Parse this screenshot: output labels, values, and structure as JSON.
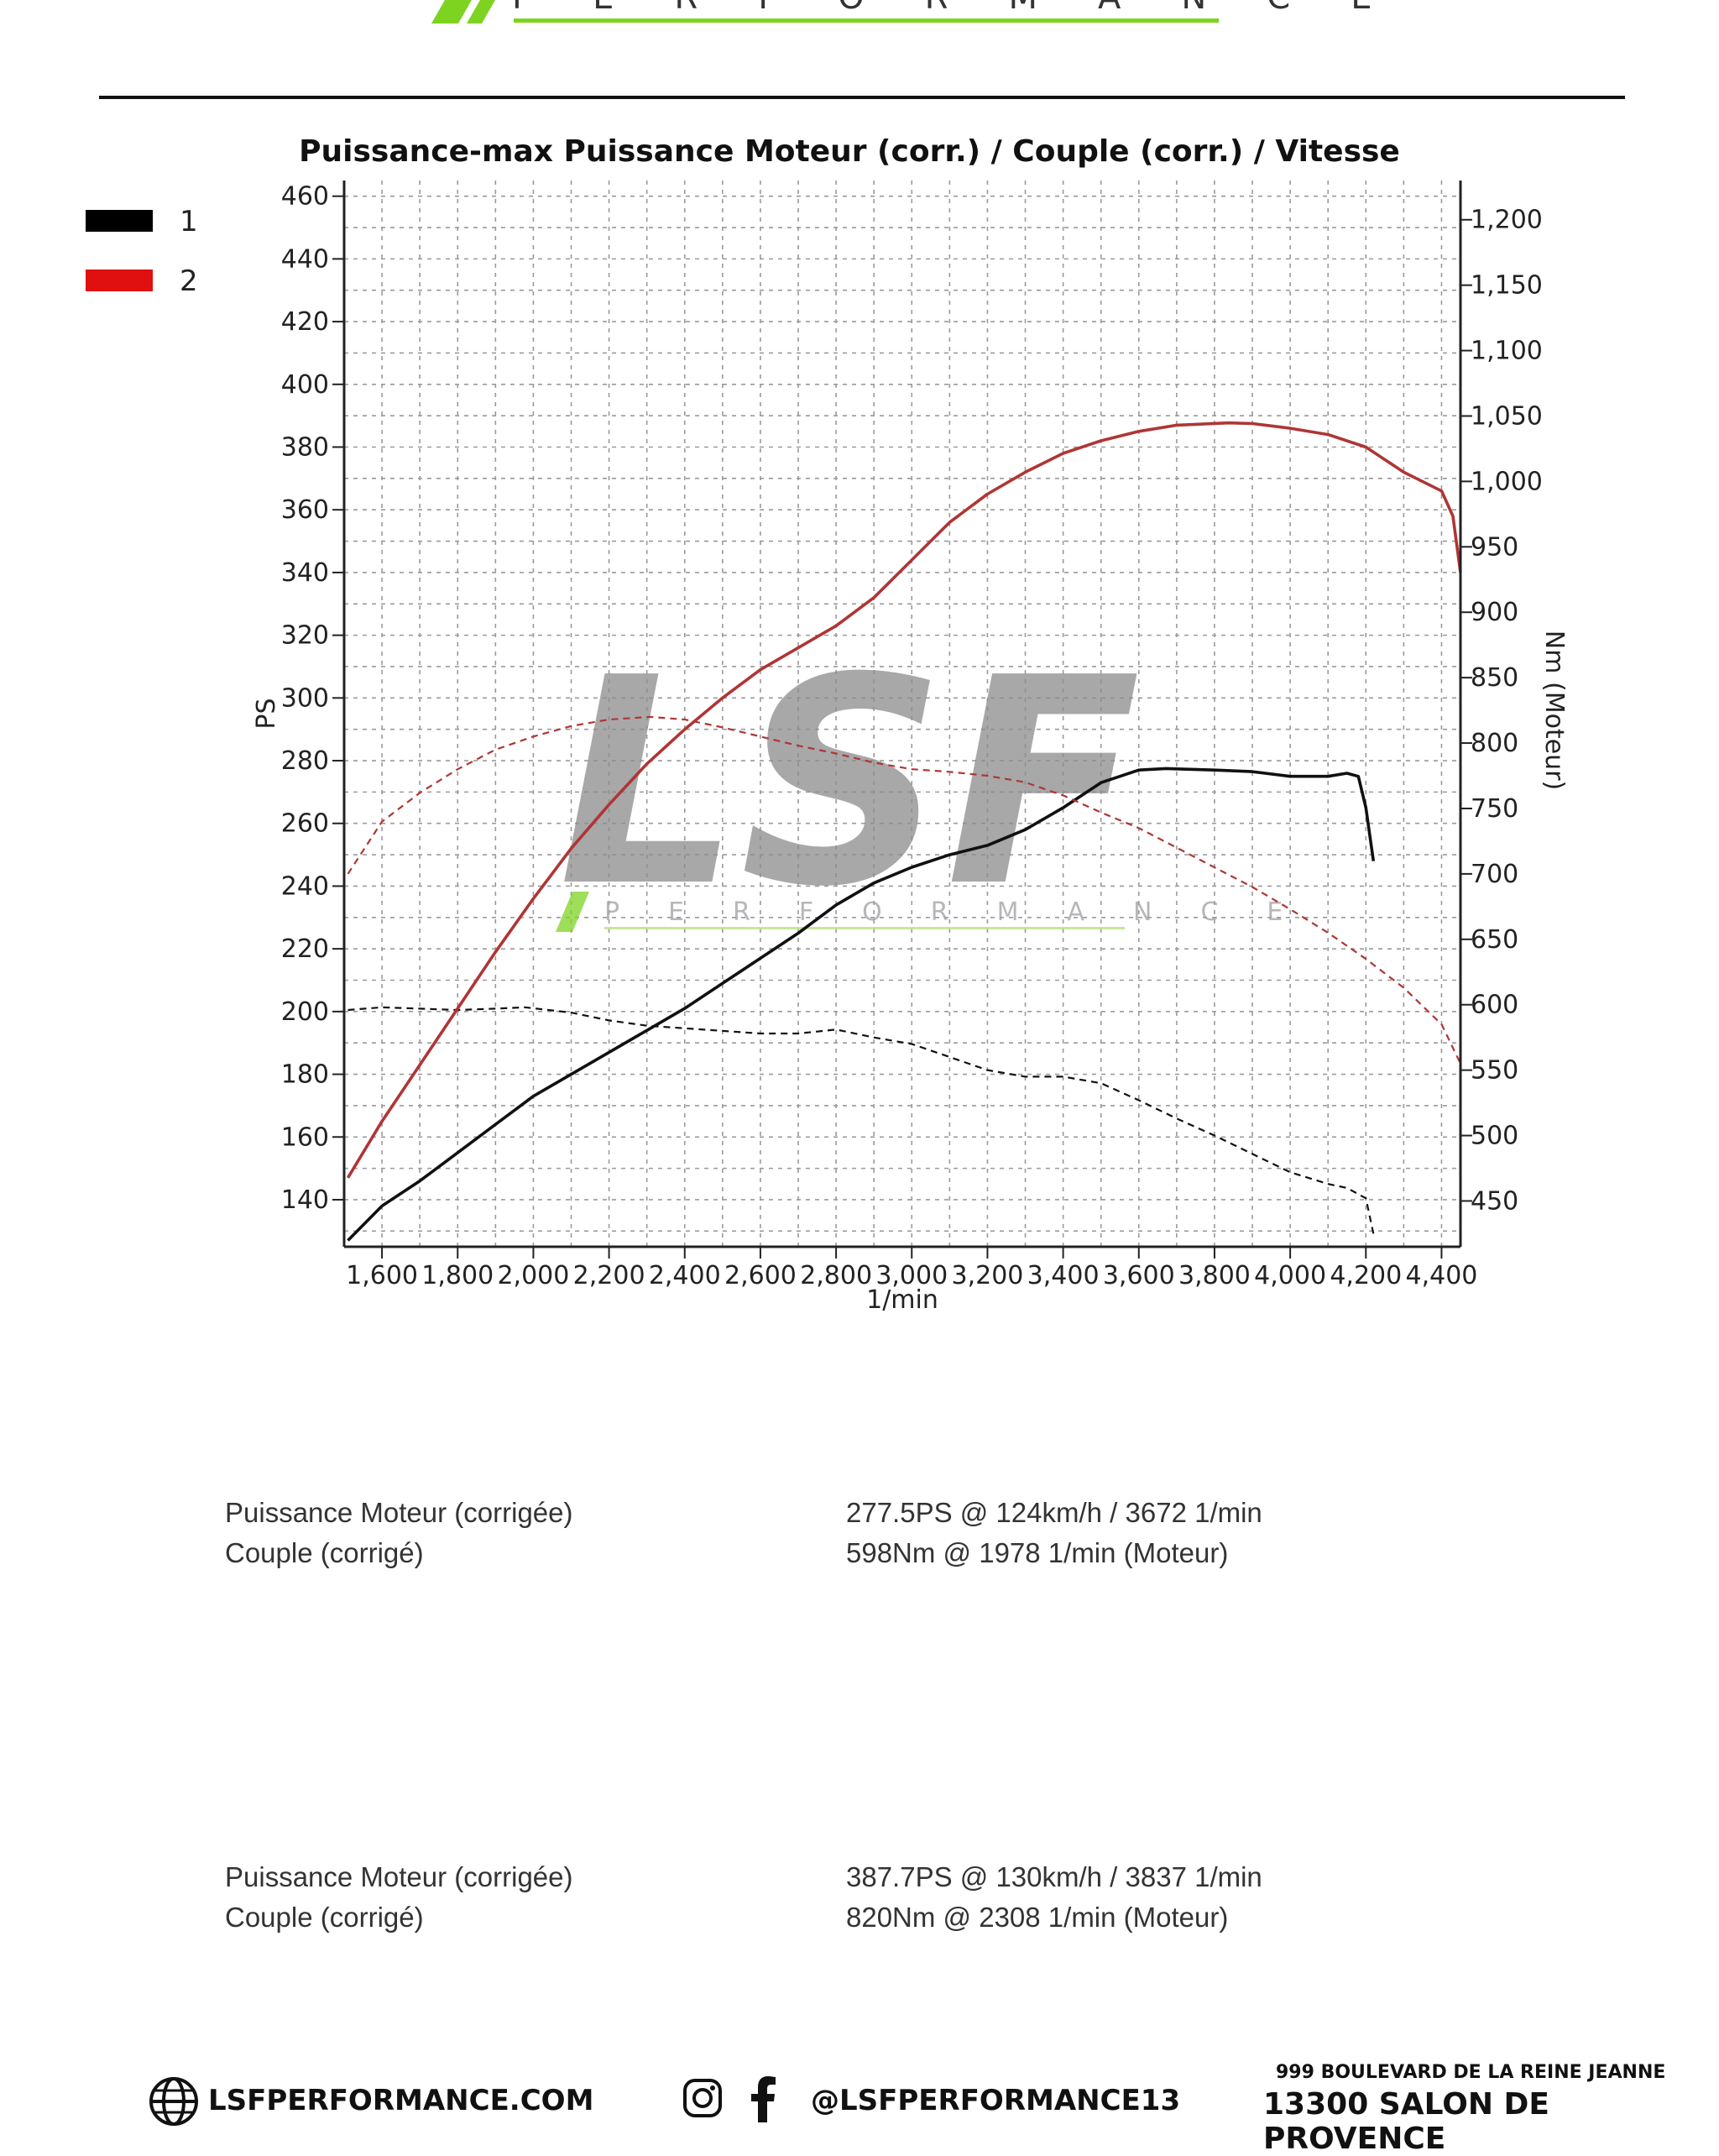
{
  "header": {
    "logo_subtitle": "PERFORMANCE"
  },
  "chart_data": {
    "type": "line",
    "title": "Puissance-max Puissance Moteur (corr.) / Couple (corr.) / Vitesse",
    "xlabel": "1/min",
    "ylabel_left": "PS",
    "ylabel_right": "Nm (Moteur)",
    "xlim": [
      1500,
      4450
    ],
    "ylim_left": [
      125,
      465
    ],
    "ylim_right": [
      415,
      1230
    ],
    "x_ticks": [
      1600,
      1800,
      2000,
      2200,
      2400,
      2600,
      2800,
      3000,
      3200,
      3400,
      3600,
      3800,
      4000,
      4200,
      4400
    ],
    "y_left_ticks": [
      140,
      160,
      180,
      200,
      220,
      240,
      260,
      280,
      300,
      320,
      340,
      360,
      380,
      400,
      420,
      440,
      460
    ],
    "y_right_ticks": [
      450,
      500,
      550,
      600,
      650,
      700,
      750,
      800,
      850,
      900,
      950,
      1000,
      1050,
      1100,
      1150,
      1200
    ],
    "x_tick_labels": [
      "1,600",
      "1,800",
      "2,000",
      "2,200",
      "2,400",
      "2,600",
      "2,800",
      "3,000",
      "3,200",
      "3,400",
      "3,600",
      "3,800",
      "4,000",
      "4,200",
      "4,400"
    ],
    "y_left_tick_labels": [
      "140",
      "160",
      "180",
      "200",
      "220",
      "240",
      "260",
      "280",
      "300",
      "320",
      "340",
      "360",
      "380",
      "400",
      "420",
      "440",
      "460"
    ],
    "y_right_tick_labels": [
      "450",
      "500",
      "550",
      "600",
      "650",
      "700",
      "750",
      "800",
      "850",
      "900",
      "950",
      "1,000",
      "1,050",
      "1,100",
      "1,150",
      "1,200"
    ],
    "grid": true,
    "legend_position": "top-left",
    "legend": [
      {
        "label": "1",
        "color": "#000000"
      },
      {
        "label": "2",
        "color": "#e01010"
      }
    ],
    "series": [
      {
        "name": "1",
        "kind": "power",
        "axis": "left",
        "color": "#111111",
        "dashed": false,
        "x": [
          1510,
          1600,
          1700,
          1800,
          1900,
          2000,
          2100,
          2200,
          2300,
          2400,
          2500,
          2600,
          2700,
          2800,
          2900,
          3000,
          3100,
          3200,
          3300,
          3400,
          3500,
          3600,
          3672,
          3800,
          3900,
          4000,
          4100,
          4150,
          4180,
          4200,
          4220
        ],
        "y": [
          127,
          138,
          146,
          155,
          164,
          173,
          180,
          187,
          194,
          201,
          209,
          217,
          225,
          234,
          241,
          246,
          250,
          253,
          258,
          265,
          273,
          277,
          277.5,
          277,
          276.5,
          275,
          275,
          276,
          275,
          265,
          248
        ]
      },
      {
        "name": "1",
        "kind": "torque",
        "axis": "right",
        "color": "#111111",
        "dashed": true,
        "x": [
          1510,
          1600,
          1700,
          1800,
          1900,
          1978,
          2100,
          2200,
          2300,
          2400,
          2500,
          2600,
          2700,
          2800,
          2900,
          3000,
          3100,
          3200,
          3300,
          3400,
          3500,
          3600,
          3700,
          3800,
          3900,
          4000,
          4100,
          4150,
          4200,
          4220
        ],
        "y": [
          596,
          598,
          597,
          596,
          597,
          598,
          594,
          588,
          584,
          582,
          580,
          578,
          578,
          581,
          575,
          570,
          560,
          550,
          545,
          545,
          540,
          527,
          513,
          500,
          486,
          472,
          463,
          460,
          452,
          425
        ]
      },
      {
        "name": "2",
        "kind": "power",
        "axis": "left",
        "color": "#b03535",
        "dashed": false,
        "x": [
          1510,
          1600,
          1700,
          1800,
          1900,
          2000,
          2100,
          2200,
          2300,
          2400,
          2500,
          2600,
          2700,
          2800,
          2900,
          3000,
          3100,
          3200,
          3300,
          3400,
          3500,
          3600,
          3700,
          3837,
          3900,
          4000,
          4100,
          4200,
          4300,
          4400,
          4430,
          4450
        ],
        "y": [
          147,
          165,
          183,
          201,
          219,
          236,
          252,
          266,
          279,
          290,
          300,
          309,
          316,
          323,
          332,
          344,
          356,
          365,
          372,
          378,
          382,
          385,
          387,
          387.7,
          387.5,
          386,
          384,
          380,
          372,
          366,
          358,
          340
        ]
      },
      {
        "name": "2",
        "kind": "torque",
        "axis": "right",
        "color": "#b03535",
        "dashed": true,
        "x": [
          1510,
          1600,
          1700,
          1800,
          1900,
          2000,
          2100,
          2200,
          2308,
          2400,
          2500,
          2600,
          2700,
          2800,
          2900,
          3000,
          3100,
          3200,
          3300,
          3400,
          3500,
          3600,
          3700,
          3800,
          3900,
          4000,
          4100,
          4200,
          4300,
          4400,
          4450
        ],
        "y": [
          700,
          740,
          762,
          780,
          795,
          805,
          813,
          818,
          820,
          818,
          812,
          805,
          798,
          792,
          785,
          780,
          778,
          775,
          770,
          760,
          747,
          735,
          720,
          705,
          690,
          673,
          655,
          635,
          613,
          585,
          555
        ]
      }
    ]
  },
  "watermark": {
    "text": "LSF",
    "subtitle": "PERFORMANCE"
  },
  "results": [
    {
      "power_label": "Puissance Moteur (corrigée)",
      "power_value": "277.5PS @ 124km/h / 3672 1/min",
      "torque_label": "Couple (corrigé)",
      "torque_value": "598Nm @ 1978 1/min (Moteur)"
    },
    {
      "power_label": "Puissance Moteur (corrigée)",
      "power_value": "387.7PS @ 130km/h / 3837 1/min",
      "torque_label": "Couple (corrigé)",
      "torque_value": "820Nm @ 2308 1/min (Moteur)"
    }
  ],
  "footer": {
    "website": "LSFPERFORMANCE.COM",
    "social": "@LSFPERFORMANCE13",
    "address_line1": "999 BOULEVARD DE LA REINE JEANNE",
    "address_line2": "13300 SALON DE PROVENCE",
    "icons": [
      "globe-icon",
      "instagram-icon",
      "facebook-icon"
    ]
  }
}
